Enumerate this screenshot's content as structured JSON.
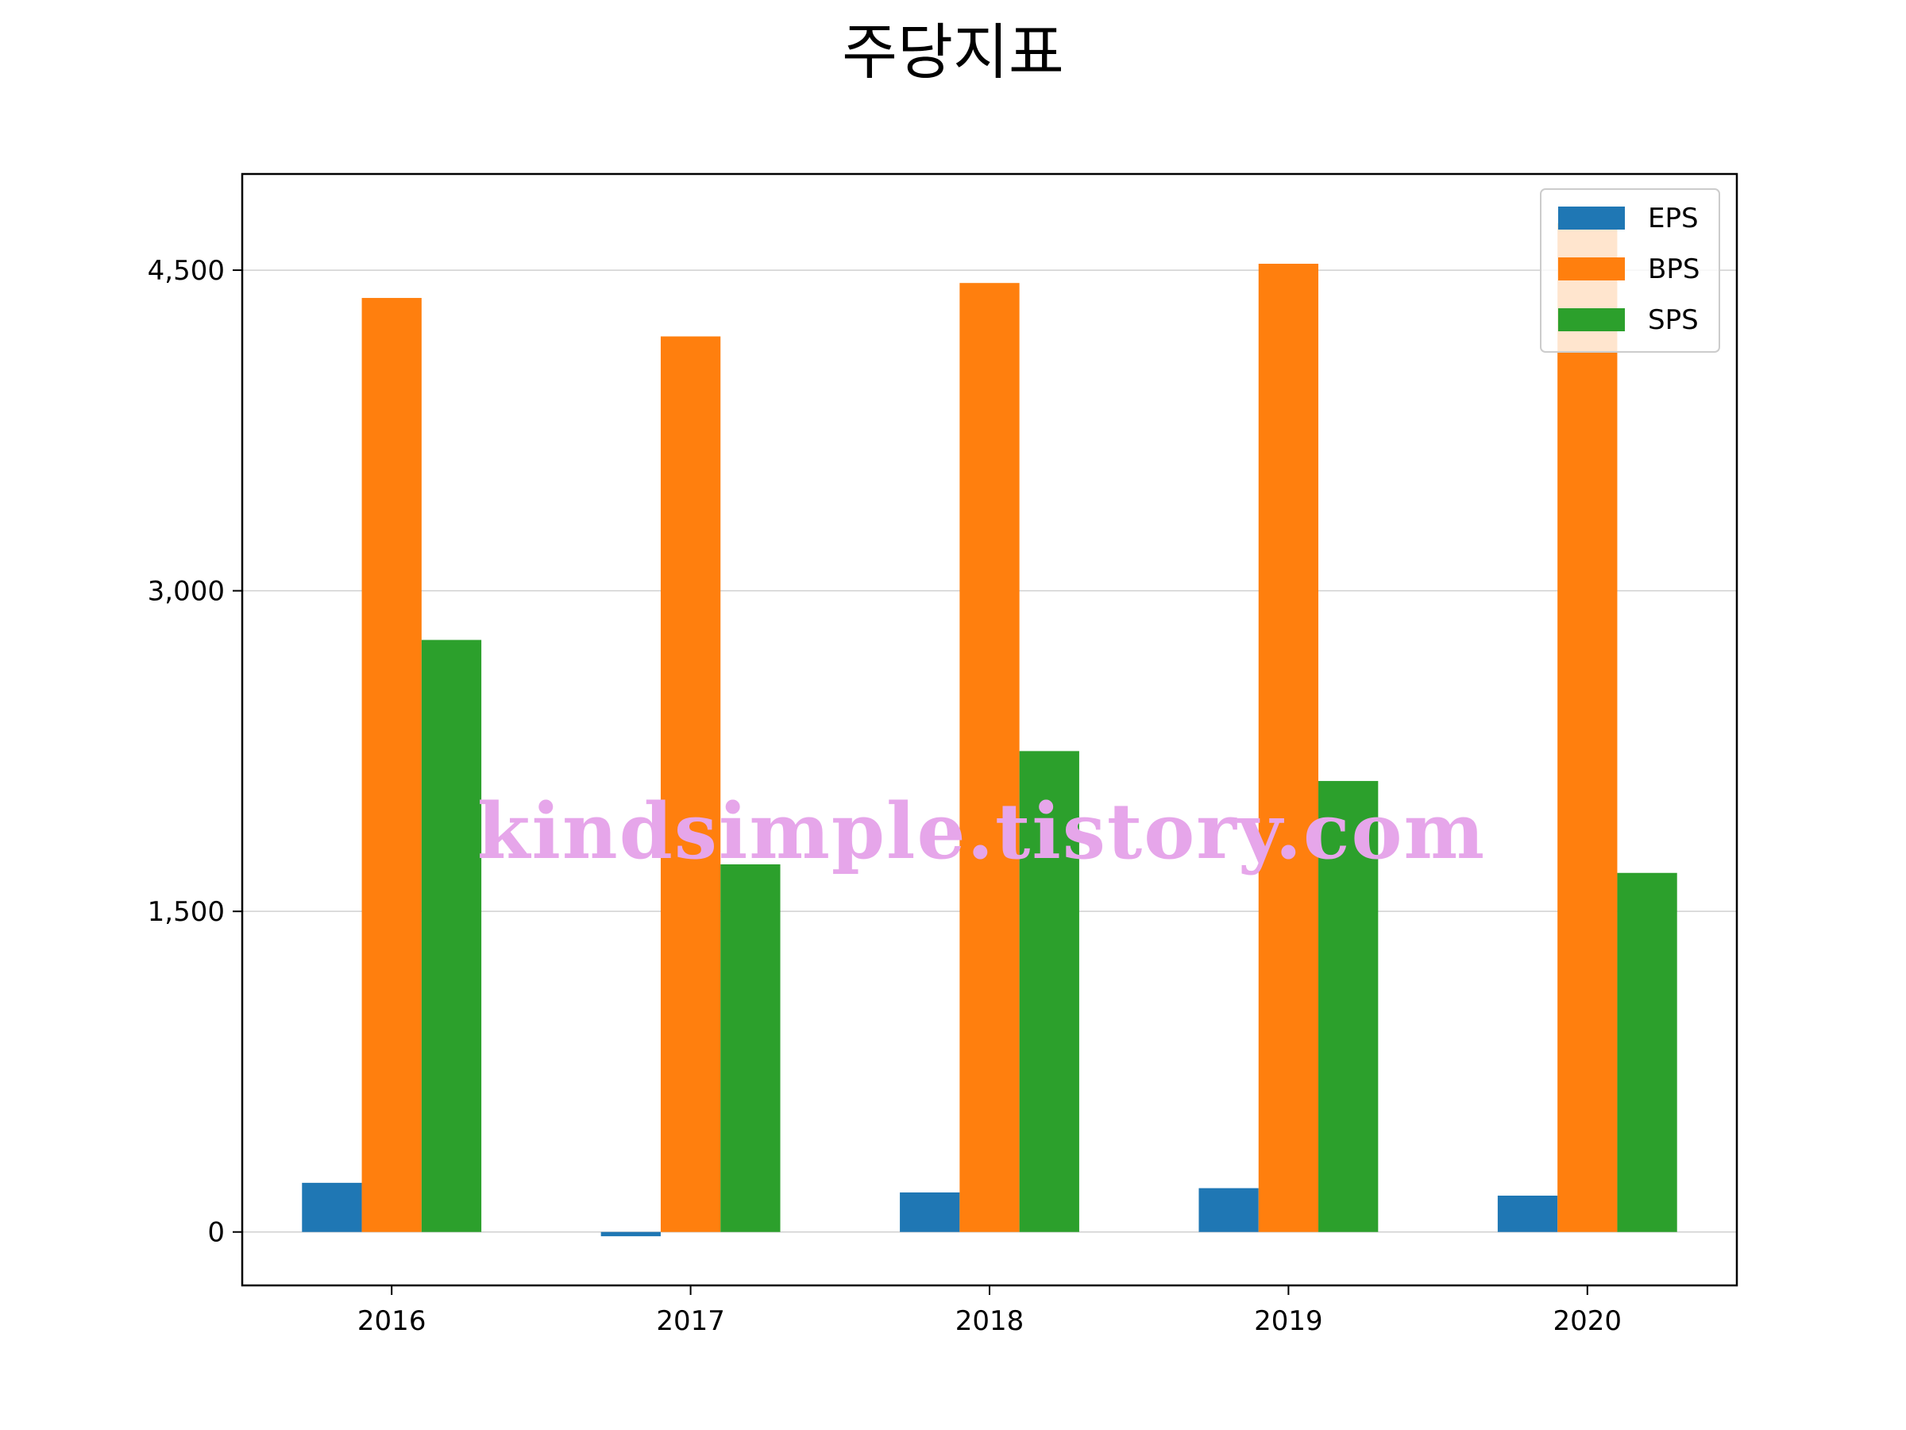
{
  "chart_data": {
    "type": "bar",
    "title": "주당지표",
    "categories": [
      "2016",
      "2017",
      "2018",
      "2019",
      "2020"
    ],
    "series": [
      {
        "name": "EPS",
        "color": "#1f77b4",
        "values": [
          230,
          -20,
          185,
          205,
          170
        ]
      },
      {
        "name": "BPS",
        "color": "#ff7f0e",
        "values": [
          4370,
          4190,
          4440,
          4530,
          4720
        ]
      },
      {
        "name": "SPS",
        "color": "#2ca02c",
        "values": [
          2770,
          1720,
          2250,
          2110,
          1680
        ]
      }
    ],
    "ylim": [
      -250,
      4950
    ],
    "yticks": [
      0,
      1500,
      3000,
      4500
    ],
    "ytick_labels": [
      "0",
      "1,500",
      "3,000",
      "4,500"
    ],
    "grid": "y",
    "legend_position": "top-right",
    "xlabel": "",
    "ylabel": ""
  },
  "watermark": "kindsimple.tistory.com"
}
